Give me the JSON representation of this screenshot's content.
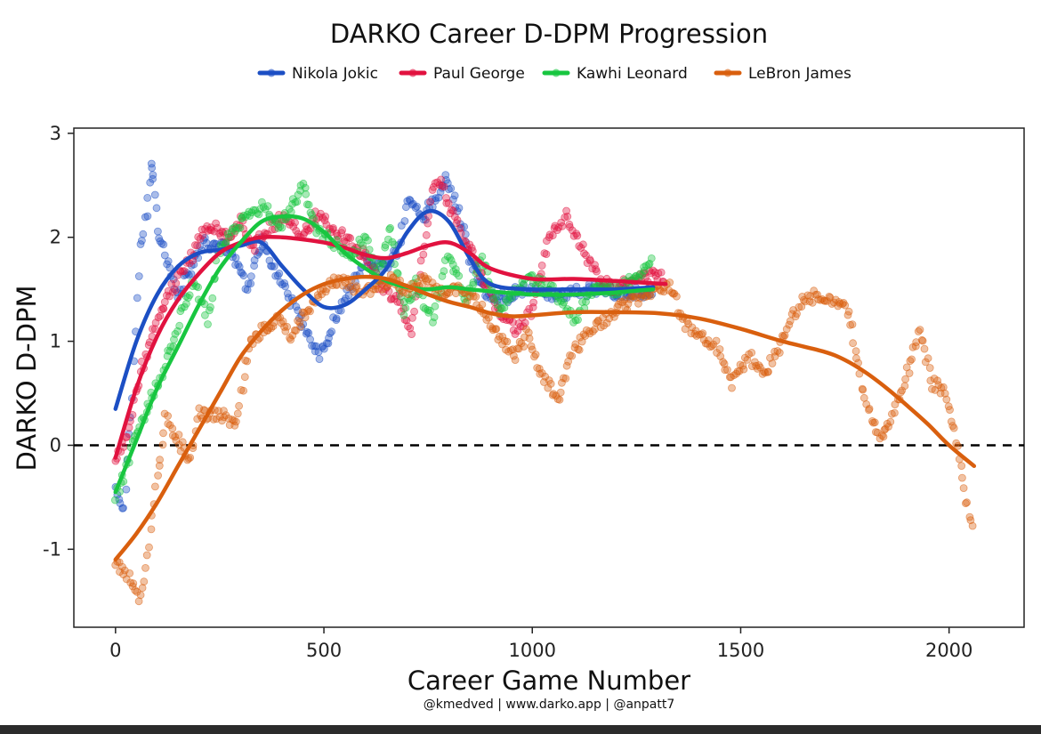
{
  "chart_data": {
    "type": "scatter",
    "title": "DARKO Career D-DPM Progression",
    "xlabel": "Career Game Number",
    "ylabel": "DARKO D-DPM",
    "caption": "@kmedved | www.darko.app | @anpatt7",
    "xlim": [
      -100,
      2180
    ],
    "ylim": [
      -1.75,
      3.05
    ],
    "x_ticks": [
      0,
      500,
      1000,
      1500,
      2000
    ],
    "x_tick_labels": [
      "0",
      "500",
      "1000",
      "1500",
      "2000"
    ],
    "y_ticks": [
      -1,
      0,
      1,
      2,
      3
    ],
    "y_tick_labels": [
      "-1",
      "0",
      "1",
      "2",
      "3"
    ],
    "reference_line": {
      "y": 0,
      "style": "dashed"
    },
    "legend_position": "top",
    "grid": false,
    "series": [
      {
        "name": "Nikola Jokic",
        "color": "#1c4fc4",
        "trend": [
          [
            0,
            0.35
          ],
          [
            50,
            1.0
          ],
          [
            100,
            1.45
          ],
          [
            150,
            1.72
          ],
          [
            200,
            1.85
          ],
          [
            250,
            1.88
          ],
          [
            300,
            1.92
          ],
          [
            350,
            1.95
          ],
          [
            400,
            1.72
          ],
          [
            450,
            1.5
          ],
          [
            500,
            1.33
          ],
          [
            550,
            1.35
          ],
          [
            600,
            1.5
          ],
          [
            650,
            1.7
          ],
          [
            700,
            2.05
          ],
          [
            750,
            2.25
          ],
          [
            800,
            2.15
          ],
          [
            850,
            1.8
          ],
          [
            900,
            1.55
          ],
          [
            1000,
            1.5
          ],
          [
            1100,
            1.5
          ],
          [
            1200,
            1.5
          ],
          [
            1290,
            1.52
          ]
        ],
        "anchors": [
          [
            0,
            -0.45
          ],
          [
            20,
            -0.6
          ],
          [
            40,
            0.5
          ],
          [
            60,
            1.95
          ],
          [
            75,
            2.2
          ],
          [
            85,
            2.7
          ],
          [
            90,
            2.55
          ],
          [
            100,
            2.1
          ],
          [
            130,
            1.7
          ],
          [
            150,
            1.45
          ],
          [
            180,
            1.7
          ],
          [
            210,
            1.95
          ],
          [
            260,
            1.9
          ],
          [
            290,
            1.75
          ],
          [
            320,
            1.5
          ],
          [
            350,
            1.95
          ],
          [
            380,
            1.7
          ],
          [
            420,
            1.4
          ],
          [
            460,
            1.1
          ],
          [
            490,
            0.85
          ],
          [
            520,
            1.15
          ],
          [
            560,
            1.5
          ],
          [
            600,
            1.8
          ],
          [
            640,
            1.7
          ],
          [
            680,
            1.9
          ],
          [
            700,
            2.35
          ],
          [
            740,
            2.2
          ],
          [
            770,
            2.4
          ],
          [
            790,
            2.55
          ],
          [
            820,
            2.3
          ],
          [
            850,
            1.8
          ],
          [
            880,
            1.5
          ],
          [
            920,
            1.4
          ],
          [
            980,
            1.5
          ],
          [
            1050,
            1.45
          ],
          [
            1150,
            1.5
          ],
          [
            1240,
            1.45
          ],
          [
            1290,
            1.5
          ]
        ]
      },
      {
        "name": "Paul George",
        "color": "#e1123f",
        "trend": [
          [
            0,
            -0.12
          ],
          [
            50,
            0.55
          ],
          [
            100,
            1.05
          ],
          [
            150,
            1.4
          ],
          [
            200,
            1.65
          ],
          [
            250,
            1.85
          ],
          [
            300,
            1.95
          ],
          [
            350,
            2.0
          ],
          [
            400,
            2.0
          ],
          [
            450,
            1.98
          ],
          [
            500,
            1.95
          ],
          [
            550,
            1.9
          ],
          [
            600,
            1.83
          ],
          [
            650,
            1.8
          ],
          [
            700,
            1.85
          ],
          [
            750,
            1.92
          ],
          [
            800,
            1.95
          ],
          [
            850,
            1.85
          ],
          [
            900,
            1.7
          ],
          [
            1000,
            1.6
          ],
          [
            1100,
            1.6
          ],
          [
            1200,
            1.58
          ],
          [
            1320,
            1.55
          ]
        ],
        "anchors": [
          [
            0,
            -0.1
          ],
          [
            20,
            0.0
          ],
          [
            40,
            0.3
          ],
          [
            60,
            0.7
          ],
          [
            90,
            1.1
          ],
          [
            120,
            1.4
          ],
          [
            150,
            1.6
          ],
          [
            180,
            1.8
          ],
          [
            210,
            2.05
          ],
          [
            240,
            2.1
          ],
          [
            270,
            2.0
          ],
          [
            300,
            2.15
          ],
          [
            330,
            1.9
          ],
          [
            370,
            2.1
          ],
          [
            410,
            2.2
          ],
          [
            450,
            2.0
          ],
          [
            480,
            2.2
          ],
          [
            520,
            2.1
          ],
          [
            560,
            1.95
          ],
          [
            600,
            1.8
          ],
          [
            640,
            1.5
          ],
          [
            680,
            1.4
          ],
          [
            710,
            1.05
          ],
          [
            730,
            1.65
          ],
          [
            760,
            2.45
          ],
          [
            780,
            2.55
          ],
          [
            810,
            2.2
          ],
          [
            850,
            1.9
          ],
          [
            880,
            1.6
          ],
          [
            920,
            1.3
          ],
          [
            960,
            1.1
          ],
          [
            1000,
            1.3
          ],
          [
            1040,
            2.0
          ],
          [
            1080,
            2.2
          ],
          [
            1120,
            1.9
          ],
          [
            1160,
            1.6
          ],
          [
            1200,
            1.5
          ],
          [
            1250,
            1.6
          ],
          [
            1300,
            1.65
          ],
          [
            1320,
            1.55
          ]
        ]
      },
      {
        "name": "Kawhi Leonard",
        "color": "#18c640",
        "trend": [
          [
            0,
            -0.45
          ],
          [
            50,
            0.05
          ],
          [
            100,
            0.55
          ],
          [
            150,
            0.95
          ],
          [
            200,
            1.35
          ],
          [
            250,
            1.7
          ],
          [
            300,
            1.95
          ],
          [
            350,
            2.15
          ],
          [
            400,
            2.2
          ],
          [
            450,
            2.18
          ],
          [
            500,
            2.05
          ],
          [
            550,
            1.85
          ],
          [
            600,
            1.7
          ],
          [
            650,
            1.58
          ],
          [
            700,
            1.52
          ],
          [
            750,
            1.5
          ],
          [
            800,
            1.52
          ],
          [
            850,
            1.5
          ],
          [
            900,
            1.48
          ],
          [
            1000,
            1.45
          ],
          [
            1100,
            1.45
          ],
          [
            1200,
            1.47
          ],
          [
            1290,
            1.5
          ]
        ],
        "anchors": [
          [
            0,
            -0.5
          ],
          [
            20,
            -0.3
          ],
          [
            40,
            0.0
          ],
          [
            70,
            0.3
          ],
          [
            100,
            0.6
          ],
          [
            130,
            0.9
          ],
          [
            160,
            1.3
          ],
          [
            190,
            1.6
          ],
          [
            220,
            1.2
          ],
          [
            250,
            1.9
          ],
          [
            290,
            2.1
          ],
          [
            320,
            2.25
          ],
          [
            360,
            2.3
          ],
          [
            390,
            2.1
          ],
          [
            420,
            2.3
          ],
          [
            450,
            2.5
          ],
          [
            480,
            2.1
          ],
          [
            520,
            1.95
          ],
          [
            560,
            1.8
          ],
          [
            600,
            2.0
          ],
          [
            630,
            1.6
          ],
          [
            660,
            2.1
          ],
          [
            690,
            1.3
          ],
          [
            720,
            1.55
          ],
          [
            760,
            1.2
          ],
          [
            800,
            1.85
          ],
          [
            840,
            1.4
          ],
          [
            880,
            1.8
          ],
          [
            920,
            1.3
          ],
          [
            960,
            1.5
          ],
          [
            1000,
            1.6
          ],
          [
            1050,
            1.5
          ],
          [
            1100,
            1.2
          ],
          [
            1150,
            1.55
          ],
          [
            1200,
            1.5
          ],
          [
            1250,
            1.6
          ],
          [
            1290,
            1.8
          ]
        ]
      },
      {
        "name": "LeBron James",
        "color": "#d95f0e",
        "trend": [
          [
            0,
            -1.1
          ],
          [
            50,
            -0.85
          ],
          [
            100,
            -0.55
          ],
          [
            150,
            -0.2
          ],
          [
            200,
            0.15
          ],
          [
            250,
            0.5
          ],
          [
            300,
            0.85
          ],
          [
            350,
            1.1
          ],
          [
            400,
            1.3
          ],
          [
            450,
            1.45
          ],
          [
            500,
            1.55
          ],
          [
            550,
            1.6
          ],
          [
            600,
            1.62
          ],
          [
            650,
            1.6
          ],
          [
            700,
            1.53
          ],
          [
            750,
            1.45
          ],
          [
            800,
            1.38
          ],
          [
            850,
            1.33
          ],
          [
            900,
            1.27
          ],
          [
            950,
            1.24
          ],
          [
            1000,
            1.25
          ],
          [
            1100,
            1.28
          ],
          [
            1200,
            1.28
          ],
          [
            1300,
            1.27
          ],
          [
            1400,
            1.22
          ],
          [
            1500,
            1.12
          ],
          [
            1600,
            1.0
          ],
          [
            1700,
            0.9
          ],
          [
            1750,
            0.82
          ],
          [
            1800,
            0.7
          ],
          [
            1850,
            0.55
          ],
          [
            1900,
            0.38
          ],
          [
            1950,
            0.2
          ],
          [
            2000,
            0.0
          ],
          [
            2060,
            -0.2
          ]
        ],
        "anchors": [
          [
            0,
            -1.1
          ],
          [
            20,
            -1.2
          ],
          [
            40,
            -1.3
          ],
          [
            60,
            -1.5
          ],
          [
            80,
            -1.0
          ],
          [
            100,
            -0.3
          ],
          [
            120,
            0.25
          ],
          [
            150,
            0.05
          ],
          [
            180,
            -0.15
          ],
          [
            200,
            0.3
          ],
          [
            250,
            0.3
          ],
          [
            290,
            0.2
          ],
          [
            320,
            0.95
          ],
          [
            350,
            1.1
          ],
          [
            390,
            1.2
          ],
          [
            420,
            1.05
          ],
          [
            460,
            1.3
          ],
          [
            500,
            1.5
          ],
          [
            540,
            1.6
          ],
          [
            580,
            1.5
          ],
          [
            620,
            1.5
          ],
          [
            660,
            1.6
          ],
          [
            700,
            1.5
          ],
          [
            740,
            1.6
          ],
          [
            780,
            1.45
          ],
          [
            820,
            1.5
          ],
          [
            860,
            1.4
          ],
          [
            900,
            1.2
          ],
          [
            930,
            1.0
          ],
          [
            960,
            0.85
          ],
          [
            990,
            1.1
          ],
          [
            1020,
            0.7
          ],
          [
            1060,
            0.45
          ],
          [
            1100,
            0.9
          ],
          [
            1140,
            1.1
          ],
          [
            1200,
            1.3
          ],
          [
            1250,
            1.4
          ],
          [
            1290,
            1.5
          ],
          [
            1330,
            1.55
          ],
          [
            1360,
            1.2
          ],
          [
            1400,
            1.05
          ],
          [
            1440,
            0.95
          ],
          [
            1480,
            0.6
          ],
          [
            1520,
            0.85
          ],
          [
            1560,
            0.7
          ],
          [
            1600,
            1.0
          ],
          [
            1640,
            1.35
          ],
          [
            1680,
            1.45
          ],
          [
            1720,
            1.4
          ],
          [
            1760,
            1.3
          ],
          [
            1790,
            0.6
          ],
          [
            1810,
            0.3
          ],
          [
            1830,
            0.1
          ],
          [
            1860,
            0.2
          ],
          [
            1900,
            0.7
          ],
          [
            1930,
            1.1
          ],
          [
            1960,
            0.6
          ],
          [
            1990,
            0.5
          ],
          [
            2020,
            0.0
          ],
          [
            2040,
            -0.5
          ],
          [
            2060,
            -0.85
          ]
        ]
      }
    ]
  }
}
